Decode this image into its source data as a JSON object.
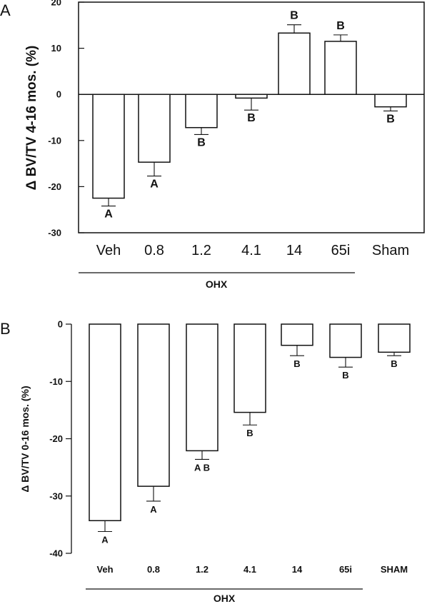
{
  "chart_data": [
    {
      "type": "bar",
      "panel_label": "A",
      "title": "",
      "ylabel": "Δ BV/TV 4-16 mos. (%)",
      "xlabel": "",
      "group_label": "OHX",
      "categories": [
        "Veh",
        "0.8",
        "1.2",
        "4.1",
        "14",
        "65i",
        "Sham"
      ],
      "values": [
        -22.5,
        -14.7,
        -7.2,
        -0.8,
        13.3,
        11.5,
        -2.7
      ],
      "errors": [
        1.7,
        3.0,
        1.5,
        2.6,
        1.8,
        1.4,
        0.9
      ],
      "significance": [
        "A",
        "A",
        "B",
        "B",
        "B",
        "B",
        "B"
      ],
      "ylim": [
        -30,
        20
      ],
      "yticks": [
        "20",
        "10",
        "0",
        "-10",
        "-20",
        "-30"
      ],
      "bar_color": "#ffffff",
      "grid": false
    },
    {
      "type": "bar",
      "panel_label": "B",
      "title": "",
      "ylabel": "Δ BV/TV 0-16 mos. (%)",
      "xlabel": "",
      "group_label": "OHX",
      "categories": [
        "Veh",
        "0.8",
        "1.2",
        "4.1",
        "14",
        "65i",
        "SHAM"
      ],
      "values": [
        -34.3,
        -28.3,
        -22.1,
        -15.4,
        -3.7,
        -5.8,
        -4.9
      ],
      "errors": [
        1.9,
        2.6,
        1.5,
        2.2,
        1.8,
        1.7,
        0.6
      ],
      "significance": [
        "A",
        "A",
        "A B",
        "B",
        "B",
        "B",
        "B"
      ],
      "ylim": [
        -40,
        0
      ],
      "yticks": [
        "0",
        "-10",
        "-20",
        "-30",
        "-40"
      ],
      "bar_color": "#ffffff",
      "grid": false
    }
  ]
}
